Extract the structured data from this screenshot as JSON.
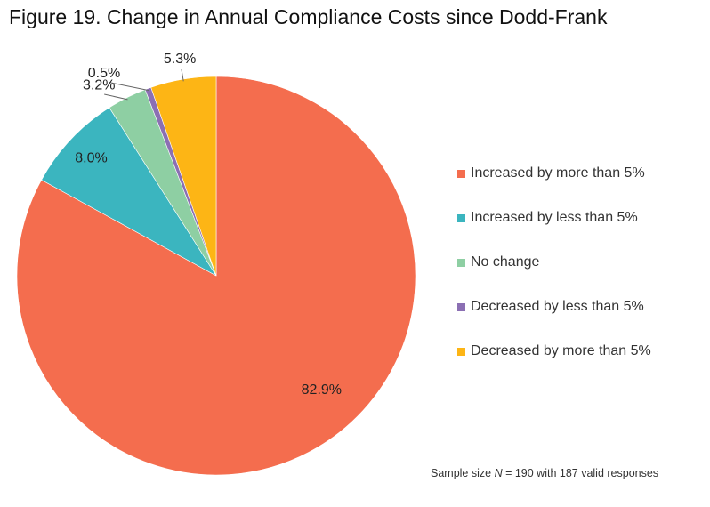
{
  "chart_data": {
    "type": "pie",
    "title": "Figure 19. Change in Annual Compliance Costs since Dodd-Frank",
    "slices": [
      {
        "label": "Increased by more than 5%",
        "value": 82.9,
        "display": "82.9%",
        "color": "#F46D4E"
      },
      {
        "label": "Increased by less than 5%",
        "value": 8.0,
        "display": "8.0%",
        "color": "#3BB5BF"
      },
      {
        "label": "No change",
        "value": 3.2,
        "display": "3.2%",
        "color": "#8ECFA3"
      },
      {
        "label": "Decreased by less than 5%",
        "value": 0.5,
        "display": "0.5%",
        "color": "#8B6FB3"
      },
      {
        "label": "Decreased by more than 5%",
        "value": 5.3,
        "display": "5.3%",
        "color": "#FDB515"
      }
    ],
    "start": "12 o'clock",
    "direction": "clockwise",
    "legend_position": "right",
    "note": {
      "prefix": "Sample size ",
      "n_symbol": "N",
      "suffix": " = 190 with 187 valid responses"
    }
  }
}
